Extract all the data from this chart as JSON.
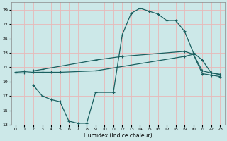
{
  "xlabel": "Humidex (Indice chaleur)",
  "bg_color": "#cce8e8",
  "grid_color": "#e8b8b8",
  "line_color": "#1a6060",
  "xlim": [
    -0.5,
    23.5
  ],
  "ylim": [
    13,
    30
  ],
  "xticks": [
    0,
    1,
    2,
    3,
    4,
    5,
    6,
    7,
    8,
    9,
    10,
    11,
    12,
    13,
    14,
    15,
    16,
    17,
    18,
    19,
    20,
    21,
    22,
    23
  ],
  "yticks": [
    13,
    15,
    17,
    19,
    21,
    23,
    25,
    27,
    29
  ],
  "line1_x": [
    0,
    1,
    2,
    3,
    9,
    12,
    19,
    20,
    21,
    22,
    23
  ],
  "line1_y": [
    20.3,
    20.4,
    20.5,
    20.7,
    22.0,
    22.5,
    23.2,
    22.8,
    20.5,
    20.2,
    20.0
  ],
  "line2_x": [
    0,
    1,
    2,
    3,
    4,
    5,
    9,
    19,
    20,
    21,
    22,
    23
  ],
  "line2_y": [
    20.2,
    20.2,
    20.3,
    20.3,
    20.3,
    20.3,
    20.5,
    22.5,
    22.8,
    20.1,
    19.9,
    19.7
  ],
  "line3_x": [
    2,
    3,
    4,
    5,
    6,
    7,
    8,
    9,
    11,
    12,
    13,
    14,
    15,
    16,
    17,
    18,
    19,
    20,
    21,
    22,
    23
  ],
  "line3_y": [
    18.5,
    17.0,
    16.5,
    16.2,
    13.5,
    13.2,
    13.2,
    17.5,
    17.5,
    25.5,
    28.5,
    29.2,
    28.8,
    28.4,
    27.5,
    27.5,
    26.0,
    23.0,
    22.0,
    20.2,
    20.0
  ],
  "marker": "+",
  "markersize": 3.5,
  "linewidth": 0.9
}
